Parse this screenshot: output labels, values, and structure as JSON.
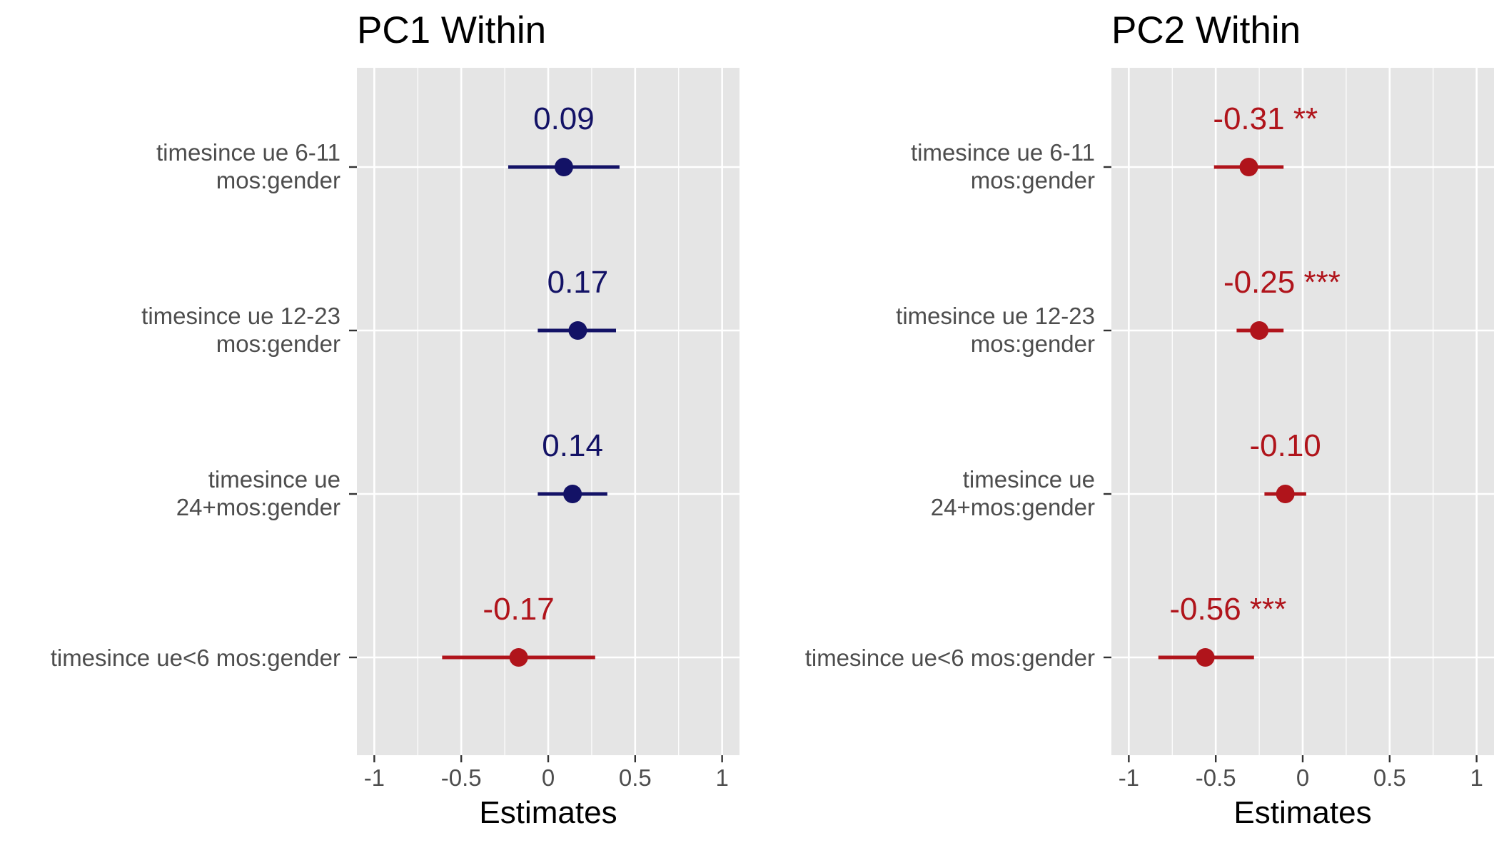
{
  "colors": {
    "positive": "#131266",
    "negative": "#b0141b",
    "panel_bg": "#e5e5e5",
    "grid": "#ffffff",
    "tick_text": "#4d4d4d"
  },
  "chart_data": [
    {
      "type": "forest",
      "title": "PC1 Within",
      "xlabel": "Estimates",
      "xlim": [
        -1.1,
        1.1
      ],
      "xticks": [
        -1,
        -0.5,
        0,
        0.5,
        1
      ],
      "xtick_labels": [
        "-1",
        "-0.5",
        "0",
        "0.5",
        "1"
      ],
      "grid": true,
      "categories": [
        [
          "timesince ue 6-11",
          "mos:gender"
        ],
        [
          "timesince ue 12-23",
          "mos:gender"
        ],
        [
          "timesince ue",
          "24+mos:gender"
        ],
        [
          "timesince ue<6 mos:gender"
        ]
      ],
      "estimates": [
        0.09,
        0.17,
        0.14,
        -0.17
      ],
      "ci_low": [
        -0.23,
        -0.06,
        -0.06,
        -0.61
      ],
      "ci_high": [
        0.41,
        0.39,
        0.34,
        0.27
      ],
      "labels": [
        "0.09",
        "0.17",
        "0.14",
        "-0.17"
      ]
    },
    {
      "type": "forest",
      "title": "PC2 Within",
      "xlabel": "Estimates",
      "xlim": [
        -1.1,
        1.1
      ],
      "xticks": [
        -1,
        -0.5,
        0,
        0.5,
        1
      ],
      "xtick_labels": [
        "-1",
        "-0.5",
        "0",
        "0.5",
        "1"
      ],
      "grid": true,
      "categories": [
        [
          "timesince ue 6-11",
          "mos:gender"
        ],
        [
          "timesince ue 12-23",
          "mos:gender"
        ],
        [
          "timesince ue",
          "24+mos:gender"
        ],
        [
          "timesince ue<6 mos:gender"
        ]
      ],
      "estimates": [
        -0.31,
        -0.25,
        -0.1,
        -0.56
      ],
      "ci_low": [
        -0.51,
        -0.38,
        -0.22,
        -0.83
      ],
      "ci_high": [
        -0.11,
        -0.11,
        0.02,
        -0.28
      ],
      "labels": [
        "-0.31 **",
        "-0.25 ***",
        "-0.10",
        "-0.56 ***"
      ]
    }
  ]
}
